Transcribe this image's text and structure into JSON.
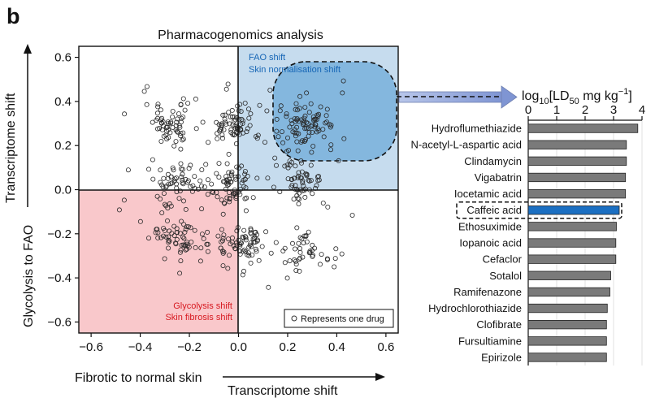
{
  "panel_label": "b",
  "scatter": {
    "title": "Pharmacogenomics analysis",
    "xlabel_left": "Fibrotic to normal skin",
    "xlabel_right": "Transcriptome shift",
    "ylabel_bottom": "Glycolysis to FAO",
    "ylabel_top": "Transcriptome shift",
    "x_ticks": [
      "−0.6",
      "−0.4",
      "−0.2",
      "0.0",
      "0.2",
      "0.4",
      "0.6"
    ],
    "y_ticks": [
      "0.6",
      "0.4",
      "0.2",
      "0.0",
      "−0.2",
      "−0.4",
      "−0.6"
    ],
    "fao_label_1": "FAO shift",
    "fao_label_2": "Skin normalisation shift",
    "gly_label_1": "Glycolysis shift",
    "gly_label_2": "Skin fibrosis shift",
    "legend": "Represents one drug"
  },
  "bar": {
    "axis_title_prefix": "log",
    "axis_title_sub": "10",
    "axis_title_mid": "[LD",
    "axis_title_sub2": "50",
    "axis_title_suffix": " mg kg",
    "axis_title_sup": "−1",
    "axis_title_close": "]",
    "x_ticks": [
      "0",
      "1",
      "2",
      "3",
      "4"
    ],
    "highlight_color": "#1b6fc2",
    "bar_color": "#7a7a7a"
  },
  "colors": {
    "fao_quadrant": "#c6dcee",
    "fao_blob": "#84b7de",
    "gly_quadrant": "#f9c8cb",
    "fao_text": "#1565b5",
    "gly_text": "#d71920",
    "arrow": "#8ea2d6"
  },
  "chart_data": [
    {
      "type": "scatter",
      "title": "Pharmacogenomics analysis",
      "xlabel": "Fibrotic to normal skin Transcriptome shift",
      "ylabel": "Glycolysis to FAO Transcriptome shift",
      "xlim": [
        -0.65,
        0.65
      ],
      "ylim": [
        -0.65,
        0.65
      ],
      "grid": false,
      "legend": "bottom-right",
      "clusters": [
        {
          "x": -0.27,
          "y": 0.3,
          "n": 60
        },
        {
          "x": -0.02,
          "y": 0.29,
          "n": 70
        },
        {
          "x": 0.28,
          "y": 0.3,
          "n": 80
        },
        {
          "x": -0.25,
          "y": 0.03,
          "n": 60
        },
        {
          "x": -0.03,
          "y": 0.02,
          "n": 70
        },
        {
          "x": 0.25,
          "y": 0.03,
          "n": 60
        },
        {
          "x": -0.24,
          "y": -0.22,
          "n": 60
        },
        {
          "x": 0.01,
          "y": -0.25,
          "n": 70
        },
        {
          "x": 0.27,
          "y": -0.27,
          "n": 40
        }
      ]
    },
    {
      "type": "bar",
      "orientation": "horizontal",
      "xlabel": "log10[LD50 mg kg−1]",
      "xlim": [
        0,
        4
      ],
      "categories": [
        "Hydroflumethiazide",
        "N-acetyl-L-aspartic acid",
        "Clindamycin",
        "Vigabatrin",
        "Iocetamic acid",
        "Caffeic acid",
        "Ethosuximide",
        "Iopanoic acid",
        "Cefaclor",
        "Sotalol",
        "Ramifenazone",
        "Hydrochlorothiazide",
        "Clofibrate",
        "Fursultiamine",
        "Epirizole"
      ],
      "values": [
        3.85,
        3.45,
        3.45,
        3.42,
        3.42,
        3.2,
        3.1,
        3.08,
        3.08,
        2.9,
        2.87,
        2.78,
        2.75,
        2.75,
        2.75
      ],
      "highlight": "Caffeic acid"
    }
  ]
}
